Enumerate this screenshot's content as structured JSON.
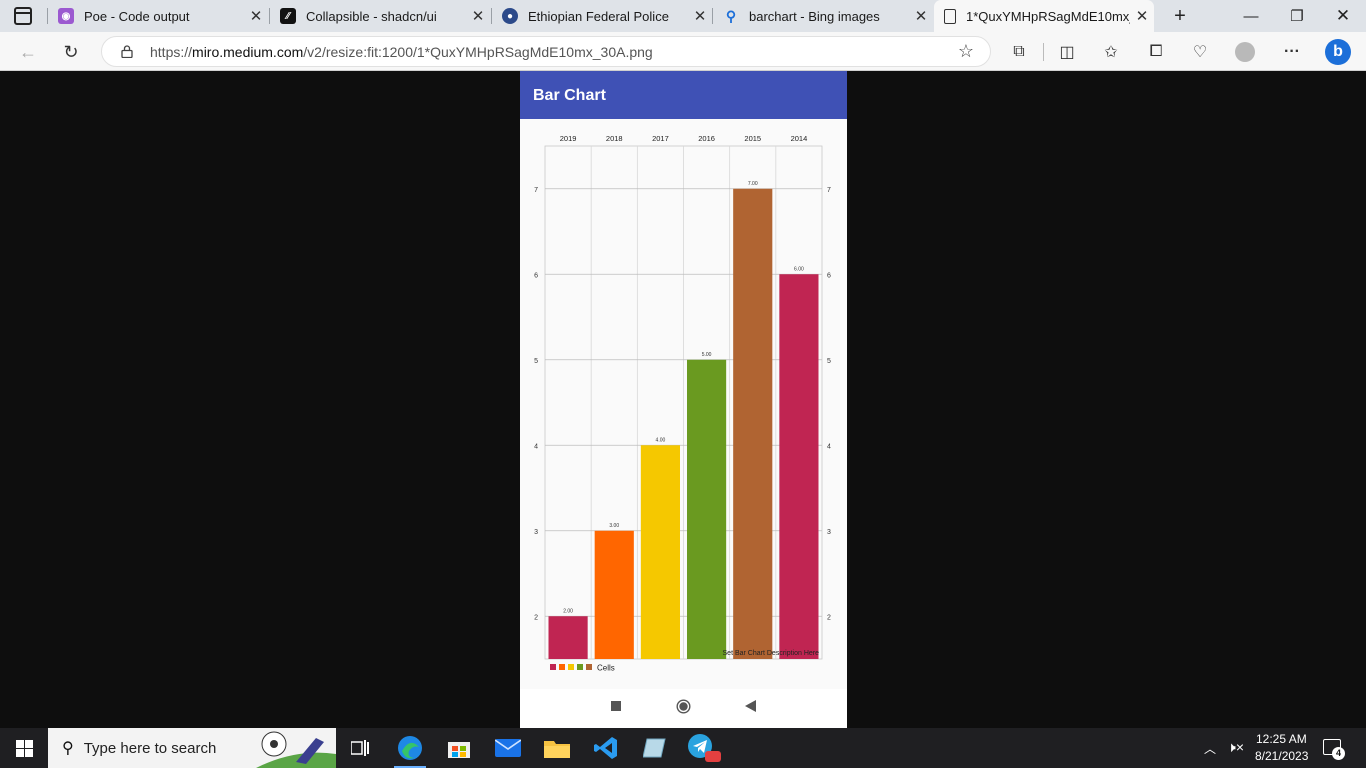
{
  "browser": {
    "tabs": [
      {
        "title": "Poe - Code output",
        "icon": "poe-icon",
        "color": "#9b59d0"
      },
      {
        "title": "Collapsible - shadcn/ui",
        "icon": "shadcn-icon",
        "color": "#111111"
      },
      {
        "title": "Ethiopian Federal Police",
        "icon": "police-emblem-icon",
        "color": "#2c4a8a"
      },
      {
        "title": "barchart - Bing images",
        "icon": "bing-search-icon",
        "color": "#1c6fd9"
      },
      {
        "title": "1*QuxYMHpRSagMdE10mx_30A.png",
        "icon": "document-icon",
        "color": "#333333"
      }
    ],
    "url_prefix": "https://",
    "url_host": "miro.medium.com",
    "url_path": "/v2/resize:fit:1200/1*QuxYMHpRSagMdE10mx_30A.png"
  },
  "app": {
    "title": "Bar Chart"
  },
  "chart_data": {
    "type": "bar",
    "title": "",
    "categories": [
      "2019",
      "2018",
      "2017",
      "2016",
      "2015",
      "2014"
    ],
    "series": [
      {
        "name": "Cells",
        "values": [
          2,
          3,
          4,
          5,
          7,
          6
        ]
      }
    ],
    "value_labels": [
      "2.00",
      "3.00",
      "4.00",
      "5.00",
      "7.00",
      "6.00"
    ],
    "bar_colors": [
      "#c02552",
      "#ff6600",
      "#f5c800",
      "#6a9a20",
      "#b06432",
      "#c02552"
    ],
    "legend_colors": [
      "#c02552",
      "#ff6600",
      "#f5c800",
      "#6a9a20",
      "#b06432"
    ],
    "y_ticks": [
      "2",
      "3",
      "4",
      "5",
      "6",
      "7"
    ],
    "ylim": [
      1.5,
      7.5
    ],
    "x_axis_position": "top",
    "y_axis_both_sides": true,
    "grid": true,
    "description": "Set Bar Chart Description Here",
    "legend_position": "bottom-left"
  },
  "taskbar": {
    "search_placeholder": "Type here to search",
    "time": "12:25 AM",
    "date": "8/21/2023",
    "notification_count": "4",
    "telegram_badge": "50"
  }
}
